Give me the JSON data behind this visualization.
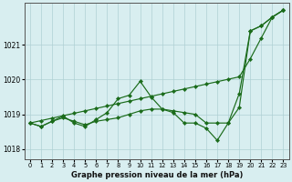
{
  "x": [
    0,
    1,
    2,
    3,
    4,
    5,
    6,
    7,
    8,
    9,
    10,
    11,
    12,
    13,
    14,
    15,
    16,
    17,
    18,
    19,
    20,
    21,
    22,
    23
  ],
  "series_zigzag": [
    1018.75,
    1018.65,
    1018.8,
    1018.95,
    1018.75,
    1018.65,
    1018.85,
    1019.05,
    1019.45,
    1019.55,
    1019.95,
    1019.5,
    1019.15,
    1019.05,
    1018.75,
    1018.75,
    1018.6,
    1018.25,
    1018.75,
    1019.2,
    1021.4,
    1021.55,
    1021.8,
    1022.0
  ],
  "series_flat": [
    1018.75,
    1018.65,
    1018.8,
    1018.9,
    1018.8,
    1018.7,
    1018.8,
    1018.85,
    1018.9,
    1019.0,
    1019.1,
    1019.15,
    1019.15,
    1019.1,
    1019.05,
    1019.0,
    1018.75,
    1018.75,
    1018.75,
    1019.6,
    1021.4,
    1021.55,
    1021.8,
    1022.0
  ],
  "series_trend": [
    1018.75,
    1018.82,
    1018.89,
    1018.96,
    1019.03,
    1019.1,
    1019.17,
    1019.24,
    1019.31,
    1019.38,
    1019.45,
    1019.52,
    1019.59,
    1019.66,
    1019.73,
    1019.8,
    1019.87,
    1019.94,
    1020.01,
    1020.08,
    1020.6,
    1021.2,
    1021.8,
    1022.0
  ],
  "line_color": "#1a6b1a",
  "bg_color": "#d8eef0",
  "grid_color": "#afd0d4",
  "xlabel": "Graphe pression niveau de la mer (hPa)",
  "ylim": [
    1017.7,
    1022.2
  ],
  "yticks": [
    1018,
    1019,
    1020,
    1021
  ],
  "xlim": [
    -0.5,
    23.5
  ]
}
